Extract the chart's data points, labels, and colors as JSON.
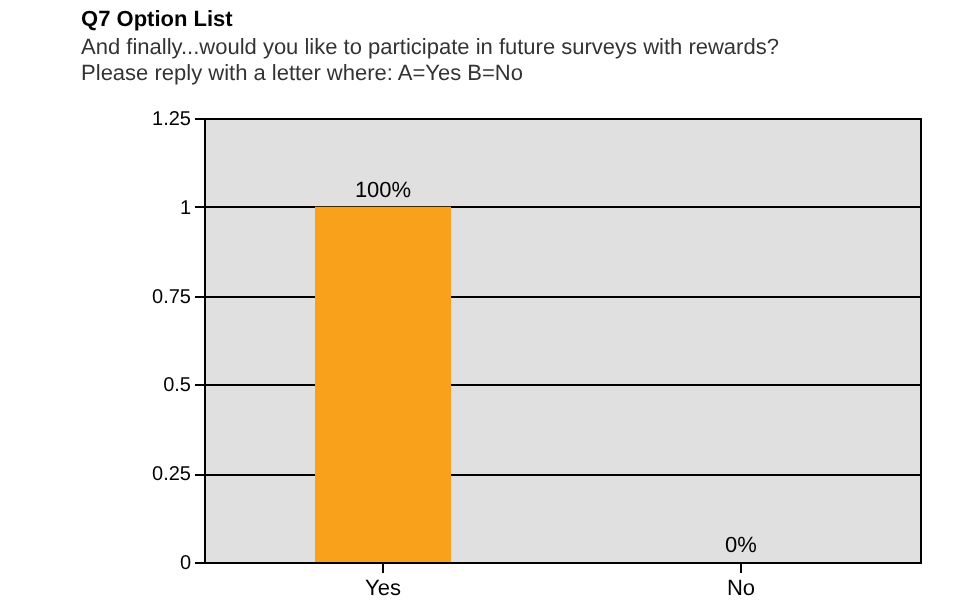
{
  "chart_data": {
    "type": "bar",
    "title": "Q7  Option List",
    "subtitle": "And finally...would you like to participate in future surveys with rewards?\nPlease reply with a letter where: A=Yes B=No",
    "categories": [
      "Yes",
      "No"
    ],
    "values": [
      1,
      0
    ],
    "color": "#f9a11b",
    "value_labels": [
      "100%",
      "0%"
    ],
    "ylim": [
      0,
      1.25
    ],
    "yticks": [
      0,
      0.25,
      0.5,
      0.75,
      1,
      1.25
    ],
    "grid": "y"
  }
}
